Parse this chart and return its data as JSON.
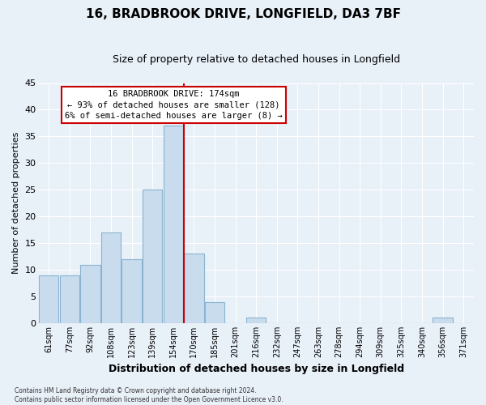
{
  "title1": "16, BRADBROOK DRIVE, LONGFIELD, DA3 7BF",
  "title2": "Size of property relative to detached houses in Longfield",
  "xlabel": "Distribution of detached houses by size in Longfield",
  "ylabel": "Number of detached properties",
  "footnote": "Contains HM Land Registry data © Crown copyright and database right 2024.\nContains public sector information licensed under the Open Government Licence v3.0.",
  "categories": [
    "61sqm",
    "77sqm",
    "92sqm",
    "108sqm",
    "123sqm",
    "139sqm",
    "154sqm",
    "170sqm",
    "185sqm",
    "201sqm",
    "216sqm",
    "232sqm",
    "247sqm",
    "263sqm",
    "278sqm",
    "294sqm",
    "309sqm",
    "325sqm",
    "340sqm",
    "356sqm",
    "371sqm"
  ],
  "values": [
    9,
    9,
    11,
    17,
    12,
    25,
    37,
    13,
    4,
    0,
    1,
    0,
    0,
    0,
    0,
    0,
    0,
    0,
    0,
    1,
    0
  ],
  "vline_x": 6.5,
  "bar_color": "#c8dcee",
  "bar_edge_color": "#8ab4d0",
  "vline_color": "#cc0000",
  "background_color": "#e8f0f8",
  "grid_color": "#ffffff",
  "annotation_text": "16 BRADBROOK DRIVE: 174sqm\n← 93% of detached houses are smaller (128)\n6% of semi-detached houses are larger (8) →",
  "annotation_box_color": "#ffffff",
  "annotation_border_color": "#cc0000",
  "ylim": [
    0,
    45
  ],
  "yticks": [
    0,
    5,
    10,
    15,
    20,
    25,
    30,
    35,
    40,
    45
  ],
  "title1_fontsize": 11,
  "title2_fontsize": 9,
  "ylabel_fontsize": 8,
  "xlabel_fontsize": 9,
  "tick_fontsize": 7,
  "annotation_fontsize": 7.5
}
